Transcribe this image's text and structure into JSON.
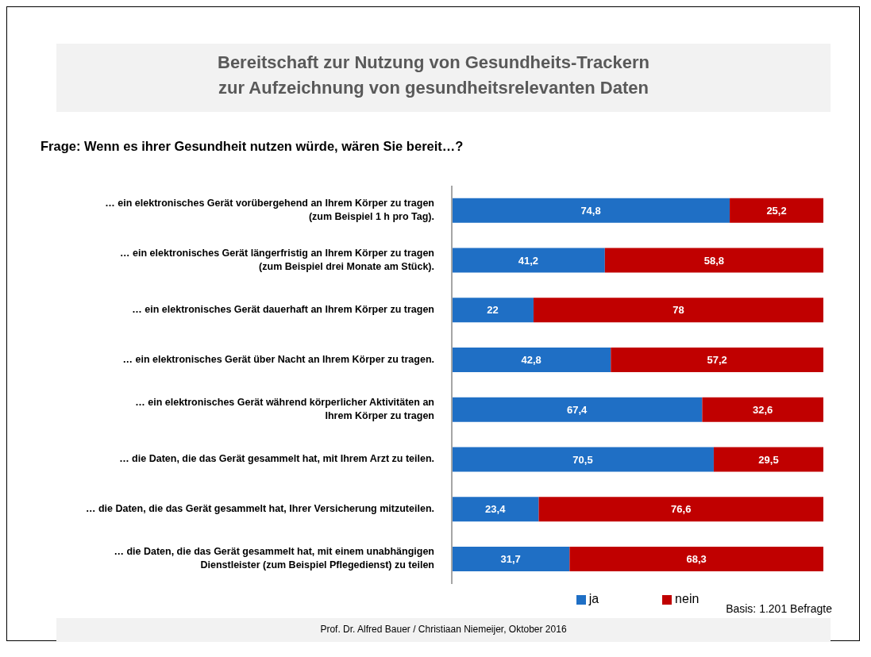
{
  "chart_data": {
    "type": "bar",
    "orientation": "horizontal",
    "stacked": true,
    "title": "Bereitschaft zur Nutzung von Gesundheits-Trackern\nzur Aufzeichnung von gesundheitsrelevanten Daten",
    "subtitle": "Frage: Wenn es ihrer Gesundheit nutzen würde, wären Sie bereit…?",
    "categories": [
      "… ein elektronisches Gerät vorübergehend an Ihrem Körper zu tragen (zum Beispiel 1 h pro Tag).",
      "… ein elektronisches Gerät längerfristig an Ihrem Körper zu tragen (zum Beispiel drei Monate am Stück).",
      "… ein elektronisches Gerät dauerhaft an Ihrem Körper zu tragen",
      "… ein elektronisches Gerät über Nacht an Ihrem Körper zu tragen.",
      "… ein elektronisches Gerät während körperlicher Aktivitäten an Ihrem Körper  zu tragen",
      "… die Daten, die das Gerät gesammelt hat, mit Ihrem Arzt zu teilen.",
      "… die Daten, die das Gerät gesammelt hat, Ihrer Versicherung mitzuteilen.",
      "… die Daten, die das Gerät gesammelt hat, mit einem unabhängigen Dienstleister (zum Beispiel Pflegedienst) zu teilen"
    ],
    "series": [
      {
        "name": "ja",
        "color": "#1f6fc5",
        "values": [
          74.8,
          41.2,
          22,
          42.8,
          67.4,
          70.5,
          23.4,
          31.7
        ],
        "value_labels": [
          "74,8",
          "41,2",
          "22",
          "42,8",
          "67,4",
          "70,5",
          "23,4",
          "31,7"
        ]
      },
      {
        "name": "nein",
        "color": "#c00000",
        "values": [
          25.2,
          58.8,
          78,
          57.2,
          32.6,
          29.5,
          76.6,
          68.3
        ],
        "value_labels": [
          "25,2",
          "58,8",
          "78",
          "57,2",
          "32,6",
          "29,5",
          "76,6",
          "68,3"
        ]
      }
    ],
    "xlim": [
      0,
      100
    ],
    "tick_labels": "y",
    "legend": "bottom",
    "grid": false,
    "annotations": [
      "Basis: 1.201 Befragte",
      "Prof. Dr. Alfred Bauer  / Christiaan Niemeijer, Oktober 2016"
    ]
  }
}
